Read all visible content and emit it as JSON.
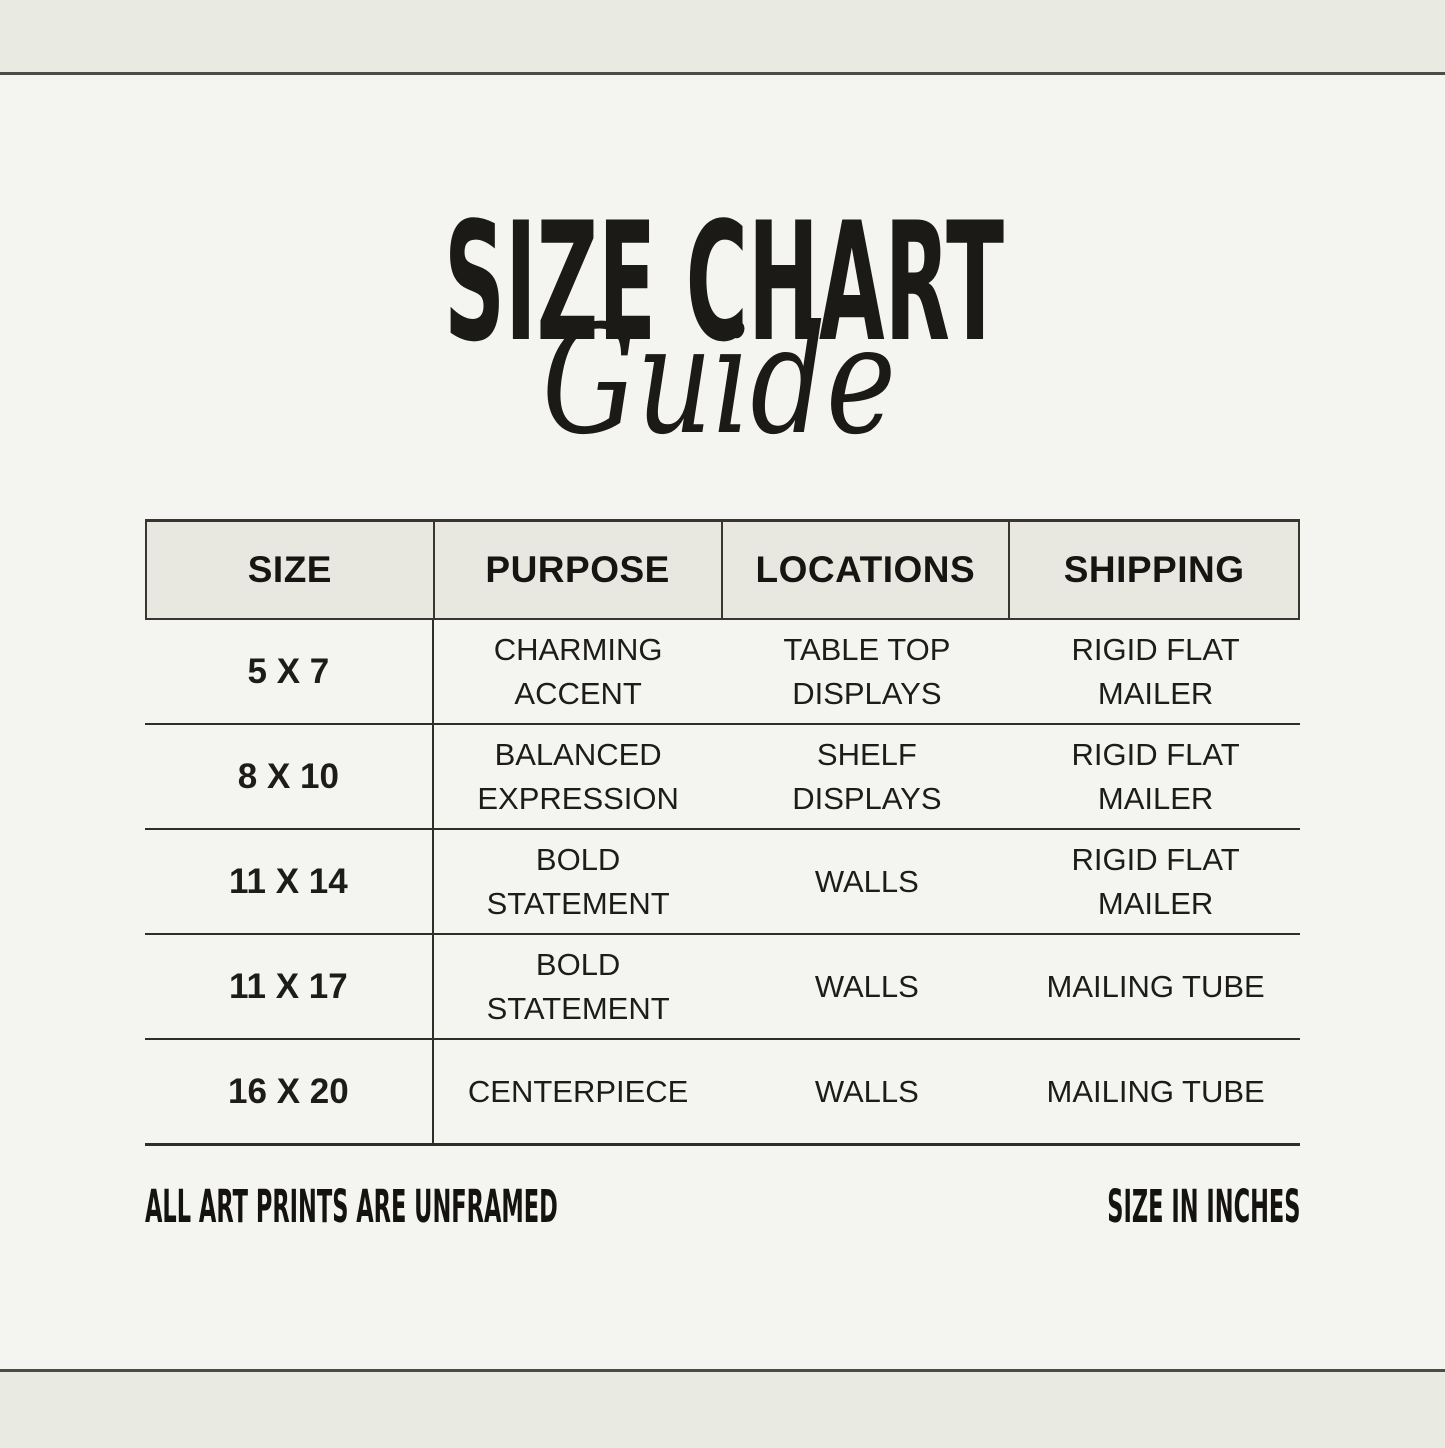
{
  "page": {
    "background_color": "#f4f4f1",
    "strip_color": "#e9eae2",
    "rule_color": "#4d4b45",
    "text_color": "#1d1c18",
    "header_bg_color": "#e8e8e1"
  },
  "title": {
    "main": "SIZE CHART",
    "script": "Guide"
  },
  "table": {
    "headers": [
      "SIZE",
      "PURPOSE",
      "LOCATIONS",
      "SHIPPING"
    ],
    "rows": [
      {
        "size": "5 X 7",
        "purpose": "CHARMING\nACCENT",
        "locations": "TABLE TOP\nDISPLAYS",
        "shipping": "RIGID FLAT\nMAILER"
      },
      {
        "size": "8 X 10",
        "purpose": "BALANCED\nEXPRESSION",
        "locations": "SHELF\nDISPLAYS",
        "shipping": "RIGID FLAT\nMAILER"
      },
      {
        "size": "11 X 14",
        "purpose": "BOLD\nSTATEMENT",
        "locations": "WALLS",
        "shipping": "RIGID FLAT\nMAILER"
      },
      {
        "size": "11 X 17",
        "purpose": "BOLD\nSTATEMENT",
        "locations": "WALLS",
        "shipping": "MAILING TUBE"
      },
      {
        "size": "16 X 20",
        "purpose": "CENTERPIECE",
        "locations": "WALLS",
        "shipping": "MAILING TUBE"
      }
    ]
  },
  "footer": {
    "left_note": "ALL ART PRINTS ARE UNFRAMED",
    "right_note": "SIZE IN INCHES"
  }
}
